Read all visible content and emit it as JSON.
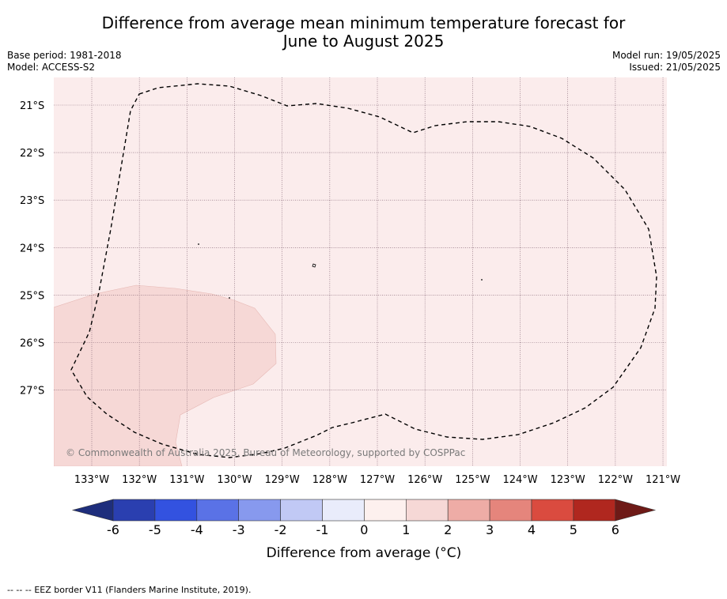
{
  "title_line1": "Difference from average mean minimum temperature forecast for",
  "title_line2": "June to August 2025",
  "base_period": "Base period: 1981-2018",
  "model": "Model: ACCESS-S2",
  "model_run": "Model run: 19/05/2025",
  "issued": "Issued: 21/05/2025",
  "copyright": "© Commonwealth of Australia 2025, Bureau of Meteorology, supported by COSPPac",
  "colorbar_label": "Difference from average (°C)",
  "footer_dashes": "--  --  --",
  "footer_text": "EEZ border V11 (Flanders Marine Institute, 2019).",
  "map": {
    "lon_labels": [
      "133°W",
      "132°W",
      "131°W",
      "130°W",
      "129°W",
      "128°W",
      "127°W",
      "126°W",
      "125°W",
      "124°W",
      "123°W",
      "122°W",
      "121°W"
    ],
    "lat_labels": [
      "21°S",
      "22°S",
      "23°S",
      "24°S",
      "25°S",
      "26°S",
      "27°S"
    ],
    "background_color": "#fbecec",
    "anomaly_region_color": "#f6d8d6",
    "background_anomaly_band": "0 to 1",
    "region_anomaly_band": "1 to 2"
  },
  "colorbar": {
    "ticks": [
      "-6",
      "-5",
      "-4",
      "-3",
      "-2",
      "-1",
      "0",
      "1",
      "2",
      "3",
      "4",
      "5",
      "6"
    ],
    "colors": [
      "#2a3fb0",
      "#3352e0",
      "#5a72e6",
      "#8799ee",
      "#c1c9f5",
      "#e9ecfb",
      "#fdf0ee",
      "#f6d8d6",
      "#eeaca6",
      "#e5857c",
      "#da4b3f",
      "#b0271f"
    ],
    "low_extend_color": "#1e2e7c",
    "high_extend_color": "#6e1a17"
  }
}
